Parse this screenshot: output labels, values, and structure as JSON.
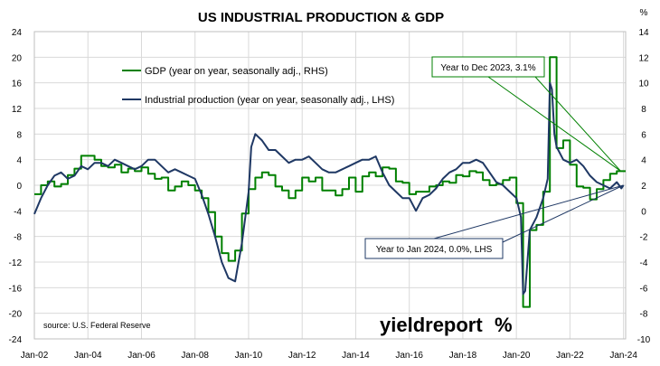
{
  "chart_data": {
    "type": "line",
    "title": "US INDUSTRIAL PRODUCTION & GDP",
    "right_axis_unit": "%",
    "source": "source: U.S. Federal Reserve",
    "brand": {
      "text": "yieldreport",
      "symbol": "%",
      "color": "#9e1b32"
    },
    "x_tick_labels": [
      "Jan-02",
      "Jan-04",
      "Jan-06",
      "Jan-08",
      "Jan-10",
      "Jan-12",
      "Jan-14",
      "Jan-16",
      "Jan-18",
      "Jan-20",
      "Jan-22",
      "Jan-24"
    ],
    "x_tick_values": [
      2002,
      2004,
      2006,
      2008,
      2010,
      2012,
      2014,
      2016,
      2018,
      2020,
      2022,
      2024
    ],
    "xlim": [
      2002,
      2024.08
    ],
    "y_left": {
      "ticks": [
        24,
        20,
        16,
        12,
        8,
        4,
        0,
        -4,
        -8,
        -12,
        -16,
        -20,
        -24
      ],
      "lim": [
        -24,
        24
      ]
    },
    "y_right": {
      "ticks": [
        14,
        12,
        10,
        8,
        6,
        4,
        2,
        0,
        -2,
        -4,
        -6,
        -8,
        -10
      ],
      "lim": [
        -10,
        14
      ]
    },
    "grid": true,
    "legend": [
      {
        "name": "GDP (year on year, seasonally adj., RHS)",
        "color": "#008000"
      },
      {
        "name": "Industrial production (year on year, seasonally adj., LHS)",
        "color": "#1f3864"
      }
    ],
    "annotations": [
      {
        "text": "Year to Dec 2023, 3.1%",
        "color": "#008000",
        "target_series": "gdp",
        "target": [
          2023.9,
          3.1
        ]
      },
      {
        "text": "Year to Jan 2024, 0.0%, LHS",
        "color": "#1f3864",
        "target_series": "ip",
        "target": [
          2024.0,
          0.0
        ]
      }
    ],
    "series": [
      {
        "id": "gdp",
        "name": "GDP (year on year, seasonally adj., RHS)",
        "axis": "right",
        "color": "#008000",
        "step": true,
        "x": [
          2002.0,
          2002.25,
          2002.5,
          2002.75,
          2003.0,
          2003.25,
          2003.5,
          2003.75,
          2004.0,
          2004.25,
          2004.5,
          2004.75,
          2005.0,
          2005.25,
          2005.5,
          2005.75,
          2006.0,
          2006.25,
          2006.5,
          2006.75,
          2007.0,
          2007.25,
          2007.5,
          2007.75,
          2008.0,
          2008.25,
          2008.5,
          2008.75,
          2009.0,
          2009.25,
          2009.5,
          2009.75,
          2010.0,
          2010.25,
          2010.5,
          2010.75,
          2011.0,
          2011.25,
          2011.5,
          2011.75,
          2012.0,
          2012.25,
          2012.5,
          2012.75,
          2013.0,
          2013.25,
          2013.5,
          2013.75,
          2014.0,
          2014.25,
          2014.5,
          2014.75,
          2015.0,
          2015.25,
          2015.5,
          2015.75,
          2016.0,
          2016.25,
          2016.5,
          2016.75,
          2017.0,
          2017.25,
          2017.5,
          2017.75,
          2018.0,
          2018.25,
          2018.5,
          2018.75,
          2019.0,
          2019.25,
          2019.5,
          2019.75,
          2020.0,
          2020.25,
          2020.5,
          2020.75,
          2021.0,
          2021.25,
          2021.5,
          2021.75,
          2022.0,
          2022.25,
          2022.5,
          2022.75,
          2023.0,
          2023.25,
          2023.5,
          2023.75,
          2024.08
        ],
        "values": [
          1.3,
          2.0,
          2.3,
          1.9,
          2.1,
          2.8,
          3.3,
          4.3,
          4.3,
          4.0,
          3.5,
          3.4,
          3.6,
          3.0,
          3.3,
          3.1,
          3.4,
          2.9,
          2.5,
          2.6,
          1.6,
          1.9,
          2.3,
          2.0,
          1.6,
          1.0,
          -0.1,
          -2.0,
          -3.3,
          -3.9,
          -3.1,
          -0.2,
          1.7,
          2.6,
          3.0,
          2.8,
          1.9,
          1.6,
          1.0,
          1.6,
          2.6,
          2.3,
          2.6,
          1.6,
          1.6,
          1.2,
          1.7,
          2.6,
          1.5,
          2.7,
          3.0,
          2.7,
          3.4,
          3.3,
          2.3,
          2.2,
          1.3,
          1.5,
          1.5,
          1.9,
          2.0,
          2.3,
          2.2,
          2.8,
          2.7,
          3.1,
          3.0,
          2.4,
          2.0,
          2.1,
          2.4,
          2.6,
          0.6,
          -7.5,
          -1.5,
          -1.1,
          1.5,
          12.0,
          4.9,
          5.5,
          3.6,
          1.9,
          1.8,
          0.9,
          1.7,
          2.4,
          2.9,
          3.1,
          3.1
        ]
      },
      {
        "id": "ip",
        "name": "Industrial production (year on year, seasonally adj., LHS)",
        "axis": "left",
        "color": "#1f3864",
        "step": false,
        "x": [
          2002.0,
          2002.25,
          2002.5,
          2002.75,
          2003.0,
          2003.25,
          2003.5,
          2003.75,
          2004.0,
          2004.25,
          2004.5,
          2004.75,
          2005.0,
          2005.25,
          2005.5,
          2005.75,
          2006.0,
          2006.25,
          2006.5,
          2006.75,
          2007.0,
          2007.25,
          2007.5,
          2007.75,
          2008.0,
          2008.25,
          2008.5,
          2008.75,
          2009.0,
          2009.25,
          2009.5,
          2009.75,
          2010.0,
          2010.1,
          2010.25,
          2010.5,
          2010.75,
          2011.0,
          2011.25,
          2011.5,
          2011.75,
          2012.0,
          2012.25,
          2012.5,
          2012.75,
          2013.0,
          2013.25,
          2013.5,
          2013.75,
          2014.0,
          2014.25,
          2014.5,
          2014.75,
          2015.0,
          2015.25,
          2015.5,
          2015.75,
          2016.0,
          2016.25,
          2016.5,
          2016.75,
          2017.0,
          2017.25,
          2017.5,
          2017.75,
          2018.0,
          2018.25,
          2018.5,
          2018.75,
          2019.0,
          2019.25,
          2019.5,
          2019.75,
          2020.0,
          2020.17,
          2020.25,
          2020.33,
          2020.5,
          2020.75,
          2021.0,
          2021.17,
          2021.25,
          2021.33,
          2021.42,
          2021.5,
          2021.75,
          2022.0,
          2022.25,
          2022.5,
          2022.75,
          2023.0,
          2023.25,
          2023.5,
          2023.75,
          2023.92,
          2024.0
        ],
        "values": [
          -4.5,
          -2.0,
          0.0,
          1.5,
          2.0,
          1.0,
          1.5,
          3.0,
          2.5,
          3.5,
          3.5,
          3.0,
          4.0,
          3.5,
          3.0,
          2.5,
          3.0,
          4.0,
          4.0,
          3.0,
          2.0,
          2.5,
          2.0,
          1.5,
          1.0,
          -1.5,
          -4.5,
          -8.0,
          -12.0,
          -14.5,
          -15.0,
          -9.0,
          -1.0,
          6.0,
          8.0,
          7.0,
          5.5,
          5.5,
          4.5,
          3.5,
          4.0,
          4.0,
          4.5,
          3.5,
          2.5,
          2.0,
          2.0,
          2.5,
          3.0,
          3.5,
          4.0,
          4.0,
          4.5,
          2.0,
          0.0,
          -1.0,
          -2.0,
          -2.0,
          -4.0,
          -2.0,
          -1.5,
          -0.5,
          1.0,
          2.0,
          2.5,
          3.5,
          3.5,
          4.0,
          3.5,
          2.0,
          0.5,
          0.0,
          -1.0,
          -2.0,
          -5.0,
          -17.0,
          -16.5,
          -7.0,
          -5.0,
          -2.0,
          1.0,
          16.0,
          15.0,
          8.0,
          6.0,
          4.0,
          3.5,
          4.0,
          3.0,
          1.5,
          0.5,
          0.0,
          -0.5,
          0.5,
          -0.5,
          0.0
        ]
      }
    ]
  }
}
